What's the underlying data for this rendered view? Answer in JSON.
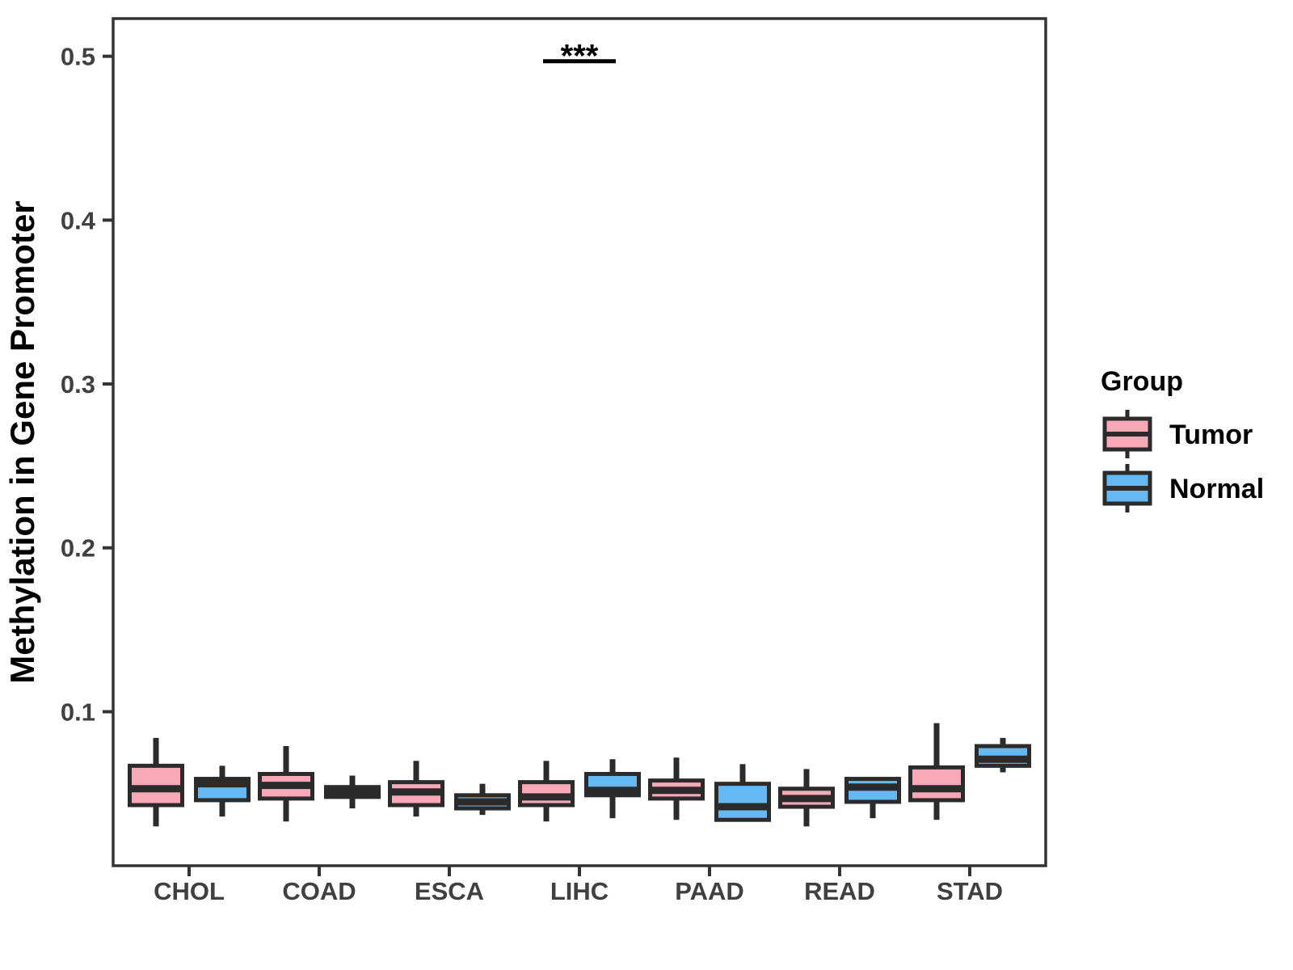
{
  "style": {
    "background": "#FFFFFF",
    "panel_border": "#333333",
    "box_border": "#2B2B2B",
    "axis_text_color": "#404040",
    "axis_title_color": "#000000",
    "legend_text_color": "#000000",
    "tumor_fill": "#F9A8B8",
    "normal_fill": "#66B8F2"
  },
  "chart_data": {
    "type": "boxplot",
    "title": "",
    "xlabel": "",
    "ylabel": "Methylation in Gene Promoter",
    "categories": [
      "CHOL",
      "COAD",
      "ESCA",
      "LIHC",
      "PAAD",
      "READ",
      "STAD"
    ],
    "y_ticks": [
      0.1,
      0.2,
      0.3,
      0.4,
      0.5
    ],
    "y_tick_labels": [
      "0.1",
      "0.2",
      "0.3",
      "0.4",
      "0.5"
    ],
    "ylim": [
      0.006,
      0.523
    ],
    "grid": false,
    "whisker_caps": false,
    "legend_position": "right",
    "legend_title": "Group",
    "series": [
      {
        "name": "Tumor",
        "fill": "#F9A8B8",
        "summary_format": [
          "min",
          "q1",
          "median",
          "q3",
          "max"
        ],
        "values": [
          [
            0.03,
            0.043,
            0.053,
            0.067,
            0.084
          ],
          [
            0.033,
            0.047,
            0.055,
            0.062,
            0.079
          ],
          [
            0.036,
            0.043,
            0.051,
            0.057,
            0.07
          ],
          [
            0.033,
            0.043,
            0.048,
            0.057,
            0.07
          ],
          [
            0.034,
            0.047,
            0.052,
            0.058,
            0.072
          ],
          [
            0.03,
            0.042,
            0.047,
            0.053,
            0.065
          ],
          [
            0.034,
            0.046,
            0.053,
            0.066,
            0.093
          ]
        ]
      },
      {
        "name": "Normal",
        "fill": "#66B8F2",
        "summary_format": [
          "min",
          "q1",
          "median",
          "q3",
          "max"
        ],
        "values": [
          [
            0.036,
            0.046,
            0.056,
            0.059,
            0.067
          ],
          [
            0.041,
            0.048,
            0.051,
            0.054,
            0.061
          ],
          [
            0.037,
            0.041,
            0.045,
            0.049,
            0.056
          ],
          [
            0.035,
            0.049,
            0.052,
            0.062,
            0.071
          ],
          [
            0.033,
            0.034,
            0.042,
            0.056,
            0.068
          ],
          [
            0.035,
            0.045,
            0.054,
            0.059,
            0.06
          ],
          [
            0.063,
            0.067,
            0.071,
            0.079,
            0.084
          ]
        ]
      }
    ],
    "annotation": {
      "text": "***",
      "category": "LIHC",
      "bar_y": 0.497
    }
  }
}
